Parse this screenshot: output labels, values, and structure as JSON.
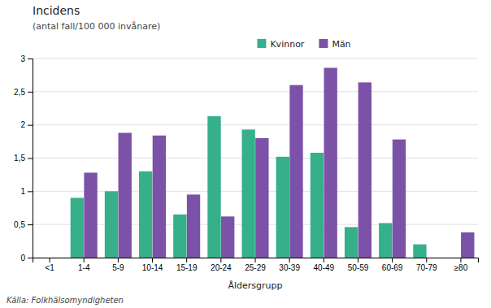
{
  "chart_data": {
    "type": "bar",
    "title": "Incidens",
    "subtitle": "(antal fall/100 000 invånare)",
    "x_label": "Åldersgrupp",
    "source": "Källa: Folkhälsomyndigheten",
    "categories": [
      "<1",
      "1-4",
      "5-9",
      "10-14",
      "15-19",
      "20-24",
      "25-29",
      "30-39",
      "40-49",
      "50-59",
      "60-69",
      "70-79",
      "≥80"
    ],
    "series": [
      {
        "name": "Kvinnor",
        "color": "#35B08A",
        "values": [
          0.0,
          0.9,
          1.0,
          1.3,
          0.65,
          2.13,
          1.93,
          1.52,
          1.58,
          0.46,
          0.52,
          0.2,
          0.0
        ]
      },
      {
        "name": "Män",
        "color": "#7B52A8",
        "values": [
          0.0,
          1.28,
          1.88,
          1.84,
          0.95,
          0.62,
          1.8,
          2.6,
          2.86,
          2.64,
          1.78,
          0.0,
          0.38
        ]
      }
    ],
    "ylim": [
      0,
      3.0
    ],
    "yticks": [
      0,
      {
        "value": 0.5,
        "label": "0,5"
      },
      1,
      {
        "value": 1.5,
        "label": "1,5"
      },
      2,
      {
        "value": 2.5,
        "label": "2,5"
      },
      3
    ],
    "grid": true,
    "legend": "top"
  }
}
